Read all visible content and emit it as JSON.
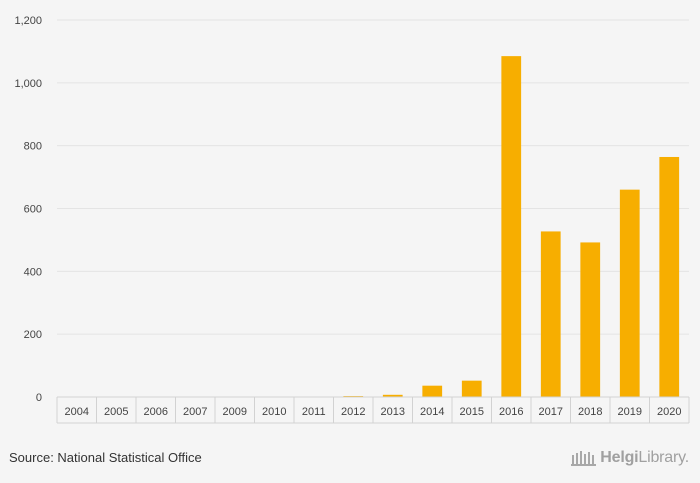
{
  "chart_data": {
    "type": "bar",
    "categories": [
      "2004",
      "2005",
      "2006",
      "2007",
      "2009",
      "2010",
      "2011",
      "2012",
      "2013",
      "2014",
      "2015",
      "2016",
      "2017",
      "2018",
      "2019",
      "2020"
    ],
    "values": [
      0,
      0,
      0,
      0,
      0,
      0,
      0,
      3,
      7,
      36,
      52,
      1085,
      527,
      492,
      660,
      764
    ],
    "yticks": [
      "0",
      "200",
      "400",
      "600",
      "800",
      "1,000",
      "1,200"
    ],
    "ylim": [
      0,
      1200
    ],
    "bar_color": "#f7ae00",
    "title": "",
    "xlabel": "",
    "ylabel": ""
  },
  "footer": {
    "source": "Source: National Statistical Office",
    "brand_bold": "Helgi",
    "brand_rest": "Library."
  }
}
